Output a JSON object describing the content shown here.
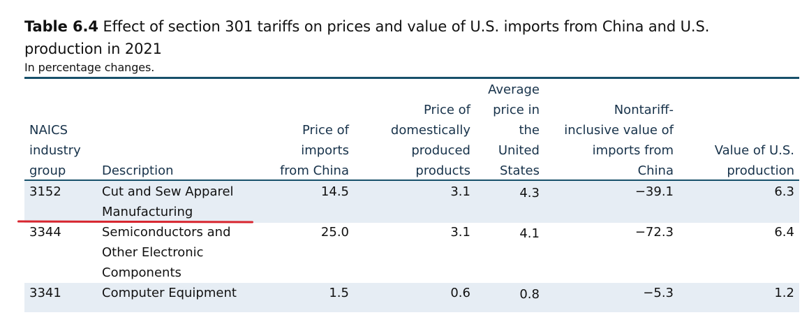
{
  "table": {
    "label": "Table 6.4",
    "title": "Effect of section 301 tariffs on prices and value of U.S. imports from China and U.S.",
    "title_line2": "production in 2021",
    "subtitle": "In percentage changes.",
    "headers": {
      "naics": [
        "NAICS",
        "industry",
        "group"
      ],
      "description": [
        "Description"
      ],
      "price_imports": [
        "Price of",
        "imports",
        "from China"
      ],
      "price_domestic": [
        "Price of",
        "domestically",
        "produced",
        "products"
      ],
      "avg_price": [
        "Average",
        "price in",
        "the",
        "United",
        "States"
      ],
      "nontariff": [
        "Nontariff-",
        "inclusive value of",
        "imports from",
        "China"
      ],
      "value_production": [
        "Value of U.S.",
        "production"
      ]
    },
    "rows": [
      {
        "naics": "3152",
        "description": [
          "Cut and Sew Apparel",
          "Manufacturing"
        ],
        "price_imports": "14.5",
        "price_domestic": "3.1",
        "avg_price": "4.3",
        "nontariff": "−39.1",
        "value_production": "6.3"
      },
      {
        "naics": "3344",
        "description": [
          "Semiconductors and",
          "Other Electronic",
          "Components"
        ],
        "price_imports": "25.0",
        "price_domestic": "3.1",
        "avg_price": "4.1",
        "nontariff": "−72.3",
        "value_production": "6.4"
      },
      {
        "naics": "3341",
        "description": [
          "Computer Equipment"
        ],
        "price_imports": "1.5",
        "price_domestic": "0.6",
        "avg_price": "0.8",
        "nontariff": "−5.3",
        "value_production": "1.2"
      }
    ],
    "colors": {
      "header_text": "#17324a",
      "rule": "#17506a",
      "row_shade": "#e6edf4",
      "annotation": "#d8262f"
    }
  }
}
